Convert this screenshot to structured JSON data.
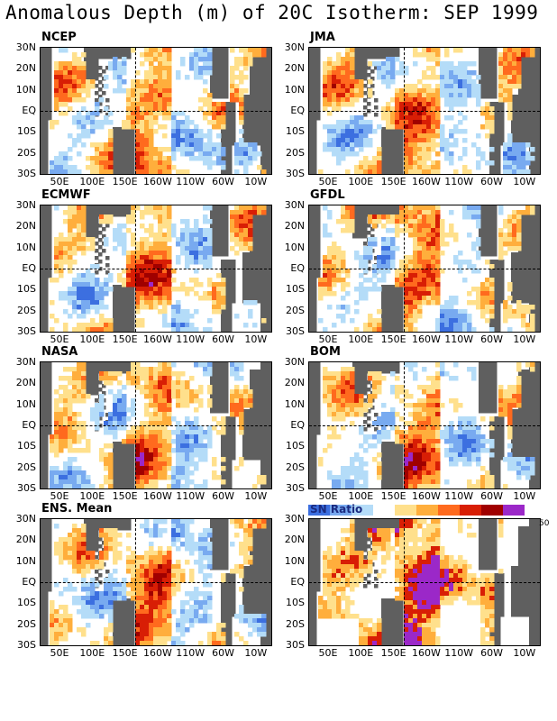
{
  "title": "Anomalous Depth (m) of 20C Isotherm: SEP 1999",
  "y_ticks": [
    "30N",
    "20N",
    "10N",
    "EQ",
    "10S",
    "20S",
    "30S"
  ],
  "x_ticks": [
    "50E",
    "100E",
    "150E",
    "160W",
    "110W",
    "60W",
    "10W"
  ],
  "panels": [
    {
      "name": "NCEP"
    },
    {
      "name": "JMA"
    },
    {
      "name": "ECMWF"
    },
    {
      "name": "GFDL"
    },
    {
      "name": "NASA"
    },
    {
      "name": "BOM"
    },
    {
      "name": "ENS. Mean"
    },
    {
      "name": "",
      "legend": "SN Ratio",
      "legend_max": "50"
    }
  ],
  "colors": {
    "land": "#5f5f5f",
    "deep_blue": "#3c6fe0",
    "mid_blue": "#78aaf0",
    "light_blue": "#b4dcf8",
    "white": "#ffffff",
    "yellow": "#ffe08c",
    "orange": "#ffae3c",
    "red_orange": "#ff6a1e",
    "red": "#d81e05",
    "dark_red": "#a00000",
    "purple": "#9b28c8"
  },
  "legend_colors": [
    "#3c6fe0",
    "#78aaf0",
    "#b4dcf8",
    "#ffffff",
    "#ffe08c",
    "#ffae3c",
    "#ff6a1e",
    "#d81e05",
    "#a00000",
    "#9b28c8"
  ]
}
